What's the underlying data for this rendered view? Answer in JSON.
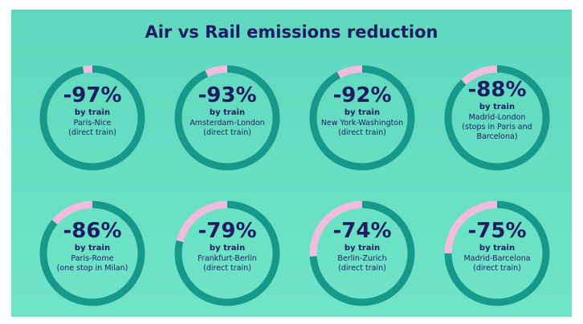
{
  "chart_data": {
    "type": "ring",
    "title": "Air vs Rail emissions reduction",
    "sublabel": "by train",
    "categories": [
      "Paris-Nice\n(direct train)",
      "Amsterdam-London\n(direct train)",
      "New York-Washington\n(direct train)",
      "Madrid-London\n(stops in Paris and\nBarcelona)",
      "Paris-Rome\n(one stop in Milan)",
      "Frankfurt-Berlin\n(direct train)",
      "Berlin-Zurich\n(direct train)",
      "Madrid-Barcelona\n(direct train)"
    ],
    "values": [
      -97,
      -93,
      -92,
      -88,
      -86,
      -79,
      -74,
      -75
    ],
    "value_labels": [
      "-97%",
      "-93%",
      "-92%",
      "-88%",
      "-86%",
      "-79%",
      "-74%",
      "-75%"
    ],
    "color": "#14998a",
    "remainder_color": "#f2bcdc",
    "ylim": [
      -100,
      0
    ]
  }
}
